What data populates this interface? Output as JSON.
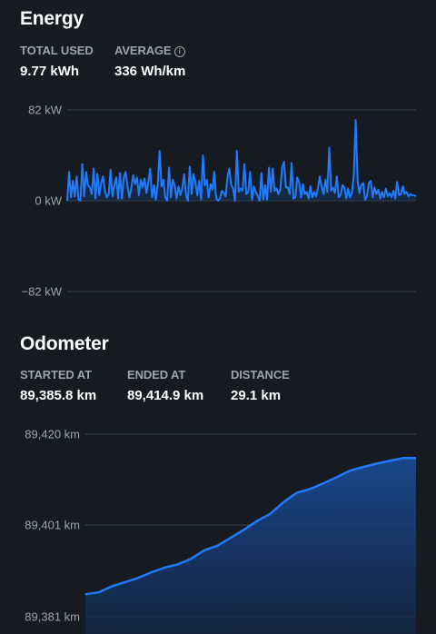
{
  "energy": {
    "title": "Energy",
    "stats": [
      {
        "label": "TOTAL USED",
        "value": "9.77 kWh"
      },
      {
        "label": "AVERAGE",
        "value": "336 Wh/km",
        "icon": "info-icon"
      }
    ],
    "chart_data": {
      "type": "line",
      "ylabel": "",
      "ytick_labels": [
        "82 kW",
        "0 kW",
        "−82 kW"
      ],
      "ylim": [
        -82,
        82
      ],
      "series": [
        {
          "values": [
            0,
            26,
            3,
            18,
            4,
            22,
            1,
            0,
            33,
            4,
            26,
            14,
            12,
            6,
            29,
            2,
            24,
            5,
            16,
            22,
            9,
            3,
            6,
            28,
            4,
            14,
            21,
            2,
            25,
            2,
            21,
            26,
            13,
            3,
            12,
            23,
            15,
            21,
            5,
            19,
            12,
            20,
            7,
            17,
            29,
            3,
            14,
            1,
            14,
            45,
            13,
            19,
            3,
            0,
            30,
            3,
            19,
            14,
            2,
            13,
            5,
            11,
            24,
            5,
            0,
            31,
            6,
            24,
            17,
            5,
            18,
            1,
            41,
            14,
            19,
            3,
            15,
            10,
            26,
            2,
            0,
            2,
            9,
            7,
            4,
            21,
            29,
            14,
            11,
            0,
            45,
            8,
            11,
            9,
            33,
            6,
            8,
            26,
            1,
            13,
            8,
            5,
            0,
            25,
            1,
            14,
            1,
            30,
            8,
            29,
            9,
            11,
            6,
            10,
            30,
            35,
            12,
            12,
            6,
            34,
            2,
            3,
            21,
            17,
            3,
            15,
            6,
            8,
            2,
            13,
            3,
            8,
            4,
            12,
            22,
            12,
            6,
            19,
            8,
            48,
            9,
            12,
            7,
            22,
            3,
            5,
            14,
            12,
            2,
            11,
            3,
            7,
            23,
            73,
            18,
            7,
            14,
            16,
            1,
            4,
            16,
            18,
            3,
            12,
            6,
            10,
            2,
            8,
            3,
            11,
            4,
            7,
            3,
            9,
            2,
            17,
            5,
            6,
            13,
            6,
            8,
            4,
            6,
            5,
            5,
            4
          ],
          "color": "#1f7bff"
        }
      ]
    }
  },
  "odometer": {
    "title": "Odometer",
    "stats": [
      {
        "label": "STARTED AT",
        "value": "89,385.8 km"
      },
      {
        "label": "ENDED AT",
        "value": "89,414.9 km"
      },
      {
        "label": "DISTANCE",
        "value": "29.1 km"
      }
    ],
    "chart_data": {
      "type": "area",
      "ylabel": "",
      "ytick_labels": [
        "89,420 km",
        "89,401 km",
        "89,381 km"
      ],
      "ylim": [
        89381,
        89420
      ],
      "series": [
        {
          "x": [
            0,
            0.04,
            0.08,
            0.12,
            0.16,
            0.2,
            0.24,
            0.28,
            0.32,
            0.36,
            0.4,
            0.44,
            0.48,
            0.52,
            0.56,
            0.6,
            0.64,
            0.68,
            0.72,
            0.76,
            0.8,
            0.84,
            0.88,
            0.92,
            0.96,
            1.0
          ],
          "values": [
            89385.8,
            89386.2,
            89387.5,
            89388.4,
            89389.3,
            89390.5,
            89391.5,
            89392.2,
            89393.4,
            89395.2,
            89396.2,
            89397.9,
            89399.6,
            89401.5,
            89403.0,
            89405.5,
            89407.5,
            89408.3,
            89409.5,
            89410.8,
            89412.2,
            89413.0,
            89413.7,
            89414.3,
            89414.9,
            89414.9
          ],
          "color": "#1f7bff"
        }
      ]
    }
  }
}
